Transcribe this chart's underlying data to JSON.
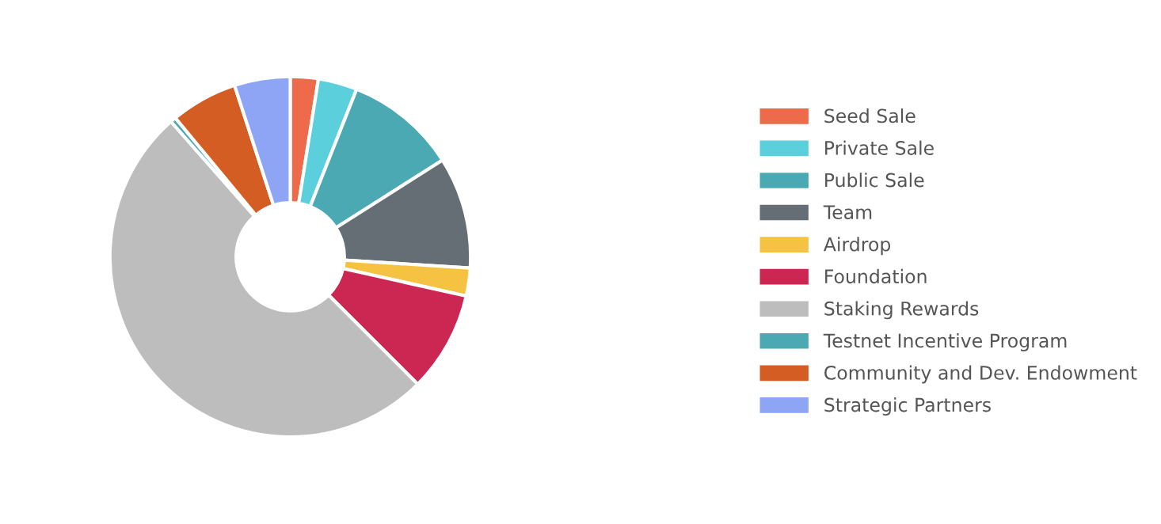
{
  "chart_data": {
    "type": "donut",
    "categories": [
      "Seed Sale",
      "Private Sale",
      "Public Sale",
      "Team",
      "Airdrop",
      "Foundation",
      "Staking Rewards",
      "Testnet Incentive Program",
      "Community and Dev. Endowment",
      "Strategic Partners"
    ],
    "values": [
      2.5,
      3.5,
      10,
      10,
      2.5,
      9,
      51,
      0.5,
      6,
      5
    ],
    "colors": [
      "#ed6a4a",
      "#5bd0dc",
      "#4aa9b2",
      "#666e75",
      "#f5c242",
      "#cc2753",
      "#bdbdbd",
      "#4aa9b2",
      "#d35d22",
      "#8ea4f4"
    ],
    "legend": "right"
  }
}
